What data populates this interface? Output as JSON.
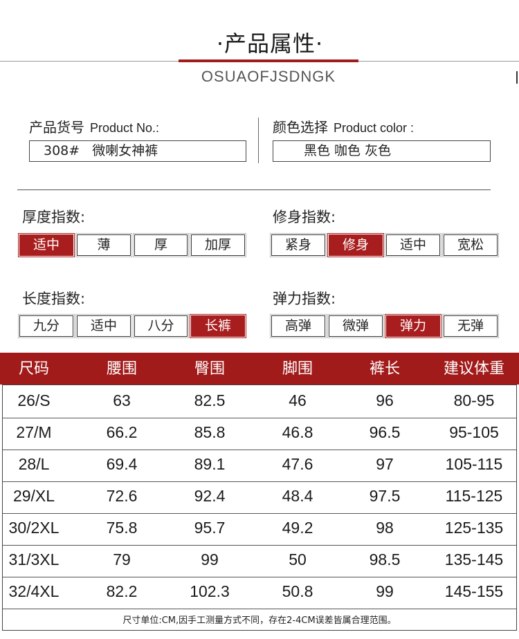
{
  "header": {
    "title": "·产品属性·",
    "brand": "OSUAOFJSDNGK"
  },
  "product": {
    "number_label_cn": "产品货号",
    "number_label_en": "Product No.:",
    "number_value": "308#   微喇女神裤",
    "color_label_cn": "颜色选择",
    "color_label_en": "Product color :",
    "color_value": "黑色 咖色 灰色"
  },
  "indices": [
    {
      "label": "厚度指数:",
      "options": [
        "适中",
        "薄",
        "厚",
        "加厚"
      ],
      "selected": 0
    },
    {
      "label": "修身指数:",
      "options": [
        "紧身",
        "修身",
        "适中",
        "宽松"
      ],
      "selected": 1
    },
    {
      "label": "长度指数:",
      "options": [
        "九分",
        "适中",
        "八分",
        "长裤"
      ],
      "selected": 3
    },
    {
      "label": "弹力指数:",
      "options": [
        "高弹",
        "微弹",
        "弹力",
        "无弹"
      ],
      "selected": 2
    }
  ],
  "size_table": {
    "headers": [
      "尺码",
      "腰围",
      "臀围",
      "脚围",
      "裤长",
      "建议体重"
    ],
    "rows": [
      [
        "26/S",
        "63",
        "82.5",
        "46",
        "96",
        "80-95"
      ],
      [
        "27/M",
        "66.2",
        "85.8",
        "46.8",
        "96.5",
        "95-105"
      ],
      [
        "28/L",
        "69.4",
        "89.1",
        "47.6",
        "97",
        "105-115"
      ],
      [
        "29/XL",
        "72.6",
        "92.4",
        "48.4",
        "97.5",
        "115-125"
      ],
      [
        "30/2XL",
        "75.8",
        "95.7",
        "49.2",
        "98",
        "125-135"
      ],
      [
        "31/3XL",
        "79",
        "99",
        "50",
        "98.5",
        "135-145"
      ],
      [
        "32/4XL",
        "82.2",
        "102.3",
        "50.8",
        "99",
        "145-155"
      ]
    ],
    "note": "尺寸单位:CM,因手工测量方式不同，存在2-4CM误差皆属合理范围。"
  },
  "colors": {
    "accent": "#a81d1d",
    "header_bg": "#a21b1b"
  }
}
